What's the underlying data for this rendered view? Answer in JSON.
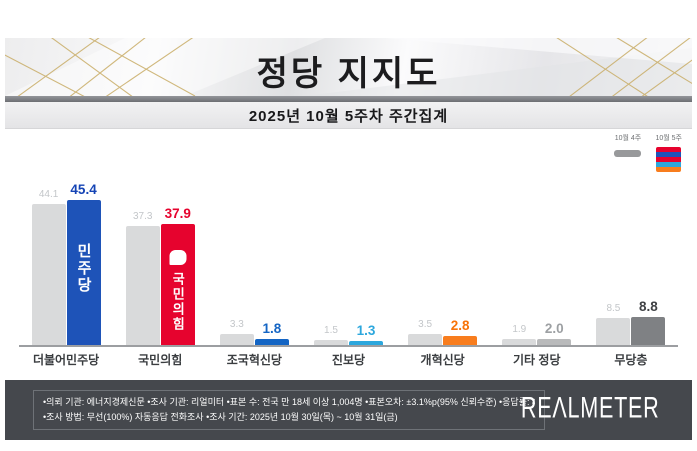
{
  "header": {
    "title": "정당 지지도",
    "subtitle": "2025년 10월 5주차 주간집계"
  },
  "legend": {
    "prev_label": "10월 4주",
    "curr_label": "10월 5주",
    "prev_color": "#98999b",
    "curr_stripes": [
      "#e6032e",
      "#1e53b8",
      "#e6032e",
      "#2ca7dd",
      "#f87d1e"
    ]
  },
  "chart_data": {
    "type": "bar",
    "title": "정당 지지도",
    "subtitle": "2025년 10월 5주차 주간집계",
    "categories": [
      "더불어민주당",
      "국민의힘",
      "조국혁신당",
      "진보당",
      "개혁신당",
      "기타 정당",
      "무당층"
    ],
    "series": [
      {
        "name": "10월 4주",
        "values": [
          44.1,
          37.3,
          3.3,
          1.5,
          3.5,
          1.9,
          8.5
        ]
      },
      {
        "name": "10월 5주",
        "values": [
          45.4,
          37.9,
          1.8,
          1.3,
          2.8,
          2.0,
          8.8
        ]
      }
    ],
    "unit": "%",
    "ylim": [
      0,
      50
    ],
    "grid": false,
    "legend_position": "top-right",
    "bar_color_previous": "#d9dadb",
    "prev_value_color": "#c3c6c9",
    "bar_colors_current": [
      "#1e53b8",
      "#e6032e",
      "#1465c4",
      "#2ca7dd",
      "#f87d1e",
      "#b9babb",
      "#7f8184"
    ],
    "value_colors_current": [
      "#1544b5",
      "#e6032e",
      "#1465c4",
      "#2ca7dd",
      "#f87307",
      "#9da0a3",
      "#3f4144"
    ],
    "logos": [
      {
        "index": 0,
        "text": "민주당",
        "symbol": "none"
      },
      {
        "index": 1,
        "text": "국민의힘",
        "symbol": "rounded-square"
      }
    ]
  },
  "footer": {
    "line1": "•의뢰 기관: 에너지경제신문  •조사 기관: 리얼미터 •표본 수: 전국 만 18세 이상 1,004명 •표본오차: ±3.1%p(95% 신뢰수준) •응답률: 4.1%",
    "line2": "•조사 방법: 무선(100%) 자동응답 전화조사 •조사 기간: 2025년 10월 30일(목) ~ 10월 31일(금)",
    "brand": "REΛLMETER"
  }
}
